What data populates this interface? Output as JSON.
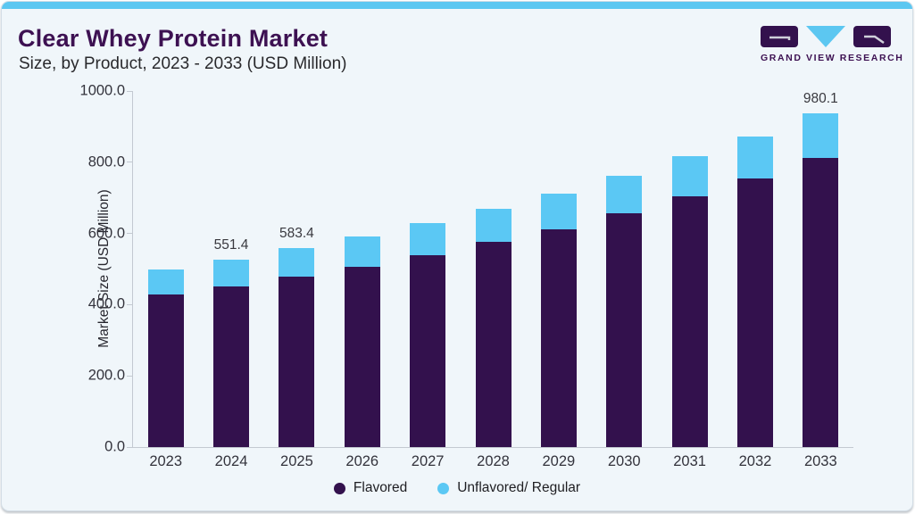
{
  "page": {
    "title": "Clear Whey Protein Market",
    "subtitle": "Size, by Product, 2023 - 2033 (USD Million)"
  },
  "logo": {
    "brand": "GRAND VIEW RESEARCH",
    "colors": {
      "block": "#33114d",
      "triangle": "#5cc7f1"
    }
  },
  "chart_data": {
    "type": "bar",
    "stacked": true,
    "title": "Clear Whey Protein Market Size, by Product, 2023 - 2033 (USD Million)",
    "categories": [
      "2023",
      "2024",
      "2025",
      "2026",
      "2027",
      "2028",
      "2029",
      "2030",
      "2031",
      "2032",
      "2033"
    ],
    "series": [
      {
        "name": "Flavored",
        "color": "#33114d",
        "values": [
          447.0,
          471.8,
          500.0,
          530.3,
          563.6,
          602.1,
          639.6,
          686.0,
          735.8,
          789.0,
          849.3
        ]
      },
      {
        "name": "Unflavored/ Regular",
        "color": "#5bc8f4",
        "values": [
          75.4,
          79.6,
          83.4,
          87.5,
          93.5,
          98.6,
          105.6,
          110.9,
          117.9,
          124.0,
          130.8
        ]
      }
    ],
    "totals": [
      522.4,
      551.4,
      583.4,
      617.8,
      657.1,
      700.7,
      745.2,
      796.9,
      853.7,
      913.0,
      980.1
    ],
    "bar_labels": {
      "2024": "551.4",
      "2025": "583.4",
      "2033": "980.1"
    },
    "ylabel": "Market Size (USD Million)",
    "ylim": [
      0,
      1000
    ],
    "yticks": [
      "1000.0",
      "800.0",
      "600.0",
      "400.0",
      "200.0",
      "0.0"
    ],
    "grid": false,
    "legend_position": "bottom"
  }
}
